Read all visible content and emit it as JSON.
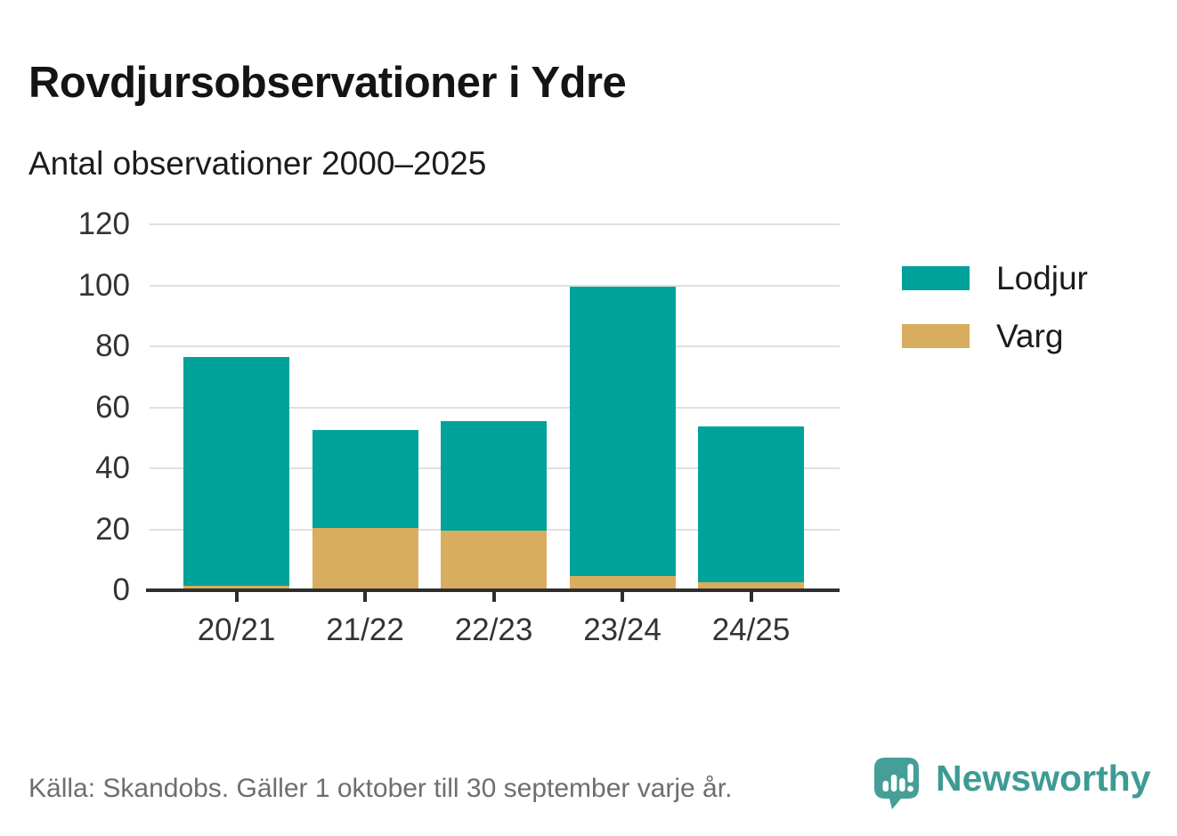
{
  "chart_data": {
    "type": "bar",
    "stacked": true,
    "title": "Rovdjursobservationer i Ydre",
    "subtitle": "Antal observationer 2000–2025",
    "categories": [
      "20/21",
      "21/22",
      "22/23",
      "23/24",
      "24/25"
    ],
    "series": [
      {
        "name": "Lodjur",
        "color": "#00a29a",
        "values": [
          75,
          32,
          36,
          95,
          51
        ]
      },
      {
        "name": "Varg",
        "color": "#d9ad5f",
        "values": [
          1,
          20,
          19,
          4,
          2
        ]
      }
    ],
    "stack_order_bottom_to_top": [
      "Varg",
      "Lodjur"
    ],
    "stack_totals": [
      76,
      52,
      55,
      99,
      53
    ],
    "ylim": [
      0,
      120
    ],
    "y_ticks": [
      0,
      20,
      40,
      60,
      80,
      100,
      120
    ],
    "grid": true,
    "legend_position": "right",
    "axis_color": "#2e2e2e",
    "grid_color": "#e0e0e0",
    "tick_label_color": "#333333"
  },
  "footer": {
    "source": "Källa: Skandobs. Gäller 1 oktober till 30 september varje år.",
    "brand": "Newsworthy",
    "brand_color": "#3e9b94",
    "logo_icon": "newsworthy-speech-bubble-bar-chart-icon"
  }
}
